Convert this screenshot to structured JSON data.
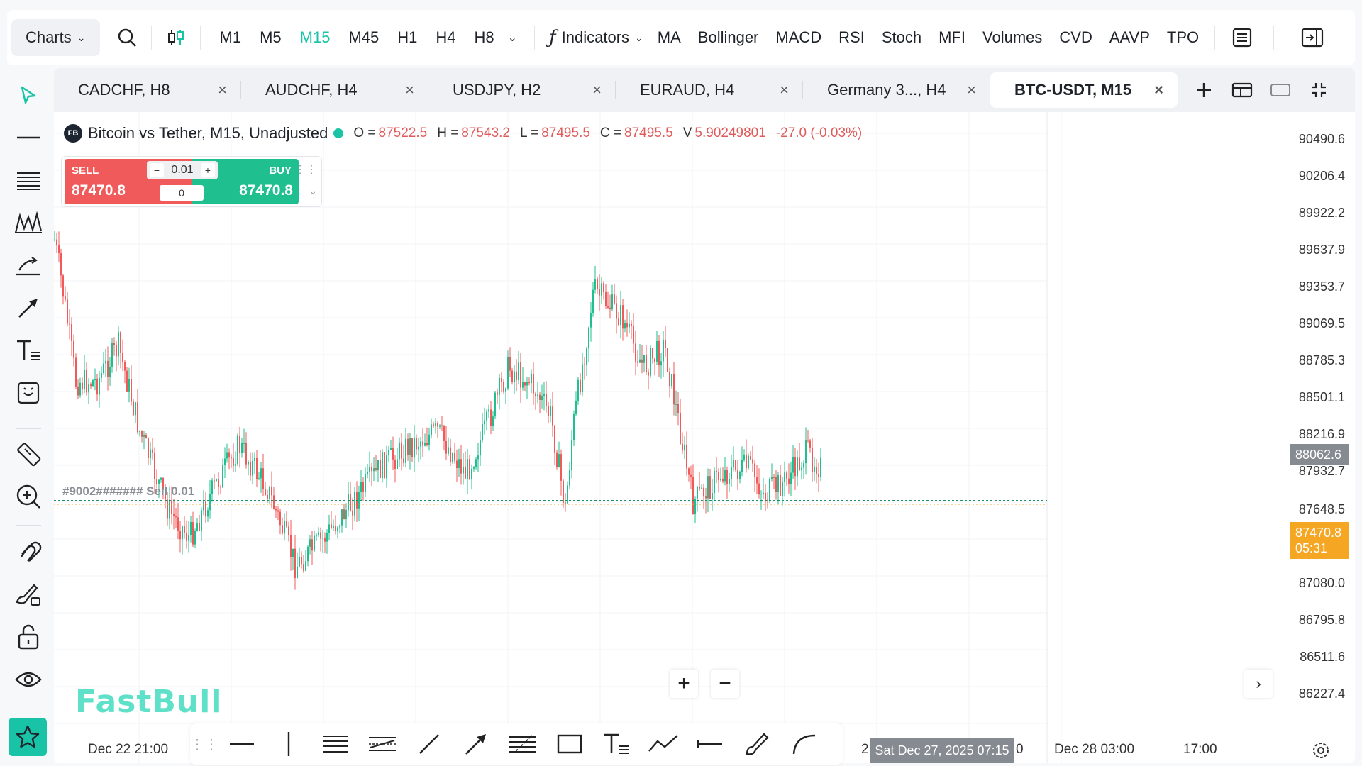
{
  "topbar": {
    "charts_label": "Charts",
    "timeframes": [
      "M1",
      "M5",
      "M15",
      "M45",
      "H1",
      "H4",
      "H8"
    ],
    "active_timeframe": "M15",
    "indicators_label": "Indicators",
    "indicator_shortcuts": [
      "MA",
      "Bollinger",
      "MACD",
      "RSI",
      "Stoch",
      "MFI",
      "Volumes",
      "CVD",
      "AAVP",
      "TPO"
    ]
  },
  "tabs": [
    {
      "label": "CADCHF, H8"
    },
    {
      "label": "AUDCHF, H4"
    },
    {
      "label": "USDJPY, H2"
    },
    {
      "label": "EURAUD, H4"
    },
    {
      "label": "Germany 3..., H4"
    },
    {
      "label": "BTC-USDT, M15",
      "active": true
    }
  ],
  "legend": {
    "badge": "FB",
    "title": "Bitcoin vs Tether, M15, Unadjusted",
    "o_key": "O =",
    "o_val": "87522.5",
    "h_key": "H =",
    "h_val": "87543.2",
    "l_key": "L =",
    "l_val": "87495.5",
    "c_key": "C =",
    "c_val": "87495.5",
    "v_key": "V",
    "v_val": "5.90249801",
    "change": "-27.0 (-0.03%)"
  },
  "trade": {
    "sell_label": "SELL",
    "sell_price": "87470.8",
    "buy_label": "BUY",
    "buy_price": "87470.8",
    "quantity": "0.01",
    "position": "0"
  },
  "order_line_label": "#9002#######  Sell 0.01",
  "price_axis": [
    "90490.6",
    "90206.4",
    "89922.2",
    "89637.9",
    "89353.7",
    "89069.5",
    "88785.3",
    "88501.1",
    "88216.9",
    "87932.7",
    "87648.5",
    "87080.0",
    "86795.8",
    "86511.6",
    "86227.4"
  ],
  "crosshair_price": "88062.6",
  "last_price": "87470.8",
  "countdown": "05:31",
  "time_axis": [
    "Dec 22 21:00",
    "2",
    "0",
    "Dec 28 03:00",
    "17:00"
  ],
  "time_hover": "Sat Dec 27, 2025 07:15",
  "logo": "FastBull",
  "colors": {
    "accent": "#19c3a5",
    "up": "#1fbf8f",
    "down": "#f05a5a",
    "last_price_tag": "#f5a623"
  }
}
